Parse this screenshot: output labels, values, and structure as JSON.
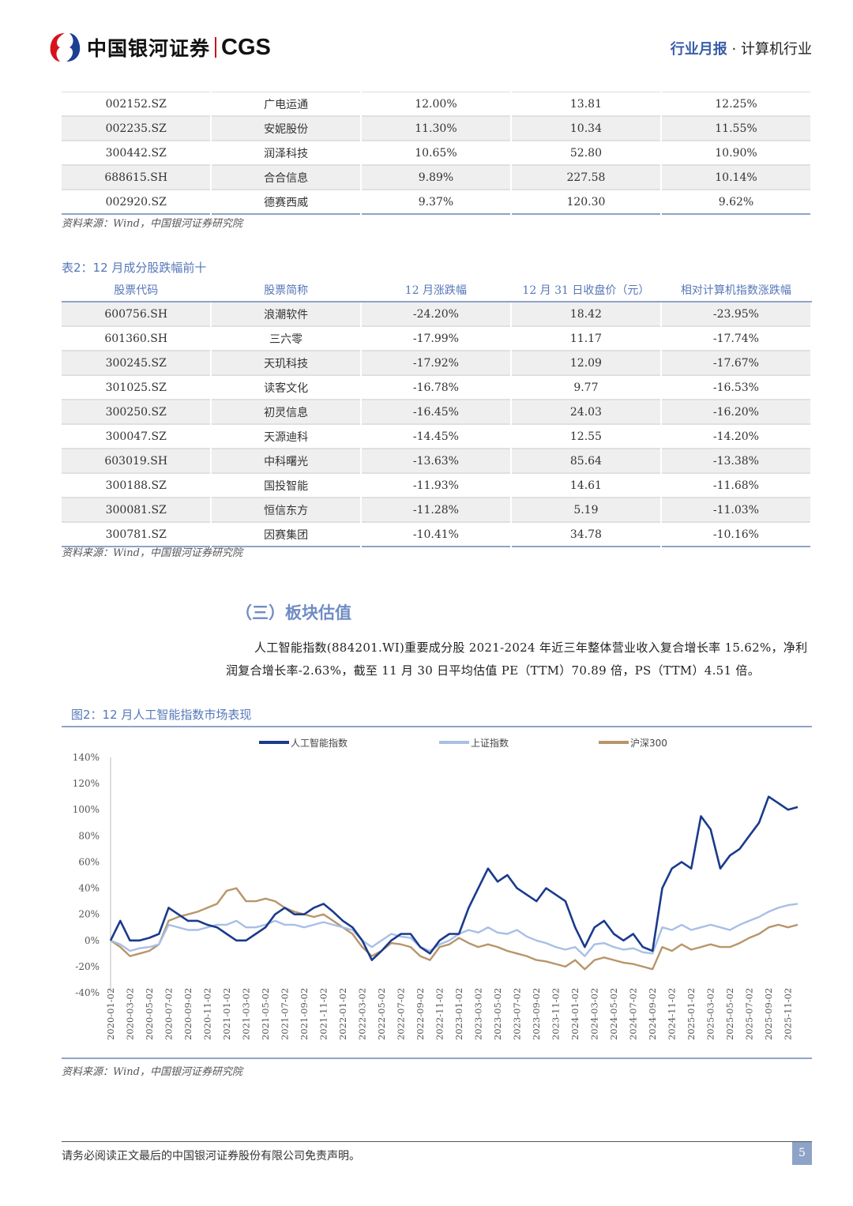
{
  "header": {
    "logo_cn": "中国银河证券",
    "logo_en": "CGS",
    "report_type": "行业月报",
    "dot": "·",
    "industry": "计算机行业"
  },
  "table1": {
    "rows": [
      [
        "002152.SZ",
        "广电运通",
        "12.00%",
        "13.81",
        "12.25%"
      ],
      [
        "002235.SZ",
        "安妮股份",
        "11.30%",
        "10.34",
        "11.55%"
      ],
      [
        "300442.SZ",
        "润泽科技",
        "10.65%",
        "52.80",
        "10.90%"
      ],
      [
        "688615.SH",
        "合合信息",
        "9.89%",
        "227.58",
        "10.14%"
      ],
      [
        "002920.SZ",
        "德赛西威",
        "9.37%",
        "120.30",
        "9.62%"
      ]
    ],
    "source": "资料来源：Wind，中国银河证券研究院"
  },
  "table2": {
    "caption": "表2：12 月成分股跌幅前十",
    "headers": [
      "股票代码",
      "股票简称",
      "12 月涨跌幅",
      "12 月 31 日收盘价（元）",
      "相对计算机指数涨跌幅"
    ],
    "rows": [
      [
        "600756.SH",
        "浪潮软件",
        "-24.20%",
        "18.42",
        "-23.95%"
      ],
      [
        "601360.SH",
        "三六零",
        "-17.99%",
        "11.17",
        "-17.74%"
      ],
      [
        "300245.SZ",
        "天玑科技",
        "-17.92%",
        "12.09",
        "-17.67%"
      ],
      [
        "301025.SZ",
        "读客文化",
        "-16.78%",
        "9.77",
        "-16.53%"
      ],
      [
        "300250.SZ",
        "初灵信息",
        "-16.45%",
        "24.03",
        "-16.20%"
      ],
      [
        "300047.SZ",
        "天源迪科",
        "-14.45%",
        "12.55",
        "-14.20%"
      ],
      [
        "603019.SH",
        "中科曙光",
        "-13.63%",
        "85.64",
        "-13.38%"
      ],
      [
        "300188.SZ",
        "国投智能",
        "-11.93%",
        "14.61",
        "-11.68%"
      ],
      [
        "300081.SZ",
        "恒信东方",
        "-11.28%",
        "5.19",
        "-11.03%"
      ],
      [
        "300781.SZ",
        "因赛集团",
        "-10.41%",
        "34.78",
        "-10.16%"
      ]
    ],
    "source": "资料来源：Wind，中国银河证券研究院"
  },
  "section": {
    "title": "（三）板块估值",
    "paragraph": "人工智能指数(884201.WI)重要成分股 2021-2024 年近三年整体营业收入复合增长率 15.62%，净利润复合增长率-2.63%，截至 11 月 30 日平均估值 PE（TTM）70.89 倍，PS（TTM）4.51 倍。"
  },
  "figure": {
    "caption": "图2：12 月人工智能指数市场表现",
    "source": "资料来源：Wind，中国银河证券研究院"
  },
  "chart_data": {
    "type": "line",
    "title": "",
    "xlabel": "",
    "ylabel": "",
    "ylim": [
      -40,
      140
    ],
    "yticks": [
      "140%",
      "120%",
      "100%",
      "80%",
      "60%",
      "40%",
      "20%",
      "0%",
      "-20%",
      "-40%"
    ],
    "yvalues": [
      140,
      120,
      100,
      80,
      60,
      40,
      20,
      0,
      -20,
      -40
    ],
    "xticks": [
      "2020-01-02",
      "2020-03-02",
      "2020-05-02",
      "2020-07-02",
      "2020-09-02",
      "2020-11-02",
      "2021-01-02",
      "2021-03-02",
      "2021-05-02",
      "2021-07-02",
      "2021-09-02",
      "2021-11-02",
      "2022-01-02",
      "2022-03-02",
      "2022-05-02",
      "2022-07-02",
      "2022-09-02",
      "2022-11-02",
      "2023-01-02",
      "2023-03-02",
      "2023-05-02",
      "2023-07-02",
      "2023-09-02",
      "2023-11-02",
      "2024-01-02",
      "2024-03-02",
      "2024-05-02",
      "2024-07-02",
      "2024-09-02",
      "2024-11-02",
      "2025-01-02",
      "2025-03-02",
      "2025-05-02",
      "2025-07-02",
      "2025-09-02",
      "2025-11-02"
    ],
    "x_note": "monthly samples Jan 2020 – Dec 2025",
    "legend": "top",
    "series": [
      {
        "name": "人工智能指数",
        "color": "#1a3a8c",
        "values": [
          0,
          15,
          0,
          0,
          2,
          5,
          25,
          20,
          15,
          15,
          12,
          10,
          5,
          0,
          0,
          5,
          10,
          20,
          25,
          20,
          20,
          25,
          28,
          22,
          15,
          10,
          0,
          -15,
          -8,
          0,
          5,
          5,
          -5,
          -10,
          0,
          5,
          5,
          25,
          40,
          55,
          45,
          50,
          40,
          35,
          30,
          40,
          35,
          30,
          10,
          -5,
          10,
          15,
          5,
          0,
          5,
          -5,
          -8,
          40,
          55,
          60,
          55,
          95,
          85,
          55,
          65,
          70,
          80,
          90,
          110,
          105,
          100,
          102
        ]
      },
      {
        "name": "上证指数",
        "color": "#a8bfe6",
        "values": [
          0,
          -3,
          -8,
          -6,
          -5,
          -3,
          12,
          10,
          8,
          8,
          10,
          12,
          12,
          15,
          10,
          10,
          12,
          15,
          12,
          12,
          10,
          12,
          14,
          12,
          10,
          8,
          0,
          -5,
          0,
          5,
          3,
          2,
          -5,
          -8,
          -3,
          0,
          5,
          8,
          6,
          10,
          6,
          5,
          8,
          3,
          0,
          -2,
          -5,
          -7,
          -5,
          -12,
          -3,
          -2,
          -5,
          -7,
          -6,
          -9,
          -10,
          10,
          8,
          12,
          8,
          10,
          12,
          10,
          8,
          12,
          15,
          18,
          22,
          25,
          27,
          28
        ]
      },
      {
        "name": "沪深300",
        "color": "#b8956a",
        "values": [
          0,
          -5,
          -12,
          -10,
          -8,
          -3,
          15,
          18,
          20,
          22,
          25,
          28,
          38,
          40,
          30,
          30,
          32,
          30,
          25,
          22,
          20,
          18,
          20,
          15,
          10,
          5,
          -5,
          -12,
          -8,
          -2,
          -3,
          -5,
          -12,
          -15,
          -5,
          -3,
          2,
          -2,
          -5,
          -3,
          -5,
          -8,
          -10,
          -12,
          -15,
          -16,
          -18,
          -20,
          -15,
          -22,
          -15,
          -13,
          -15,
          -17,
          -18,
          -20,
          -22,
          -5,
          -8,
          -3,
          -7,
          -5,
          -3,
          -5,
          -5,
          -2,
          2,
          5,
          10,
          12,
          10,
          12
        ]
      }
    ]
  },
  "footer": {
    "disclaimer": "请务必阅读正文最后的中国银河证券股份有限公司免责声明。",
    "page": "5"
  }
}
